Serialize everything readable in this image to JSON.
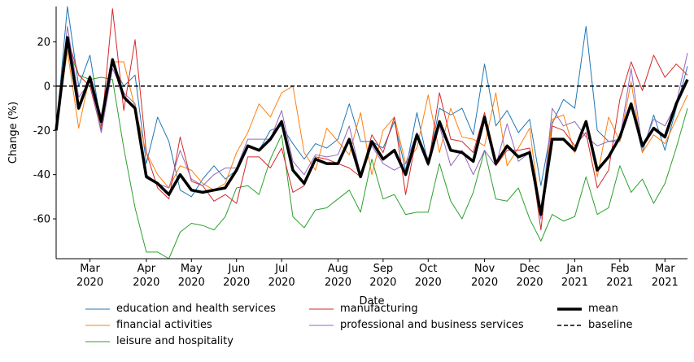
{
  "chart_data": {
    "type": "line",
    "xlabel": "Date",
    "ylabel": "Change (%)",
    "categories": [
      null,
      null,
      null,
      "Mar\n2020",
      null,
      null,
      null,
      null,
      "Apr\n2020",
      null,
      null,
      null,
      "May\n2020",
      null,
      null,
      null,
      "Jun\n2020",
      null,
      null,
      null,
      "Jul\n2020",
      null,
      null,
      null,
      null,
      "Aug\n2020",
      null,
      null,
      null,
      "Sep\n2020",
      null,
      null,
      null,
      "Oct\n2020",
      null,
      null,
      null,
      null,
      "Nov\n2020",
      null,
      null,
      null,
      "Dec\n2020",
      null,
      null,
      null,
      "Jan\n2021",
      null,
      null,
      null,
      "Feb\n2021",
      null,
      null,
      null,
      "Mar\n2021",
      null,
      null
    ],
    "ylim": [
      -78,
      36
    ],
    "yticks": [
      -60,
      -40,
      -20,
      0,
      20
    ],
    "series": [
      {
        "name": "education and health services",
        "color": "#1f77b4",
        "width": 1,
        "values": [
          -20,
          36,
          0,
          14,
          -18,
          10,
          0,
          5,
          -35,
          -14,
          -25,
          -47,
          -50,
          -42,
          -36,
          -42,
          -38,
          -27,
          -29,
          -20,
          -18,
          -26,
          -33,
          -26,
          -28,
          -24,
          -8,
          -25,
          -25,
          -28,
          -16,
          -38,
          -12,
          -35,
          -10,
          -13,
          -10,
          -22,
          10,
          -18,
          -11,
          -21,
          -15,
          -45,
          -17,
          -6,
          -10,
          27,
          -20,
          -25,
          -25,
          -8,
          -30,
          -13,
          -29,
          -10,
          9
        ]
      },
      {
        "name": "financial activities",
        "color": "#ff7f0e",
        "width": 1,
        "values": [
          -20,
          16,
          -19,
          5,
          -20,
          11,
          11,
          -10,
          -30,
          -40,
          -46,
          -36,
          -38,
          -44,
          -47,
          -44,
          -30,
          -21,
          -8,
          -14,
          -3,
          0,
          -30,
          -38,
          -19,
          -25,
          -31,
          -12,
          -40,
          -20,
          -14,
          -35,
          -28,
          -4,
          -30,
          -10,
          -23,
          -24,
          -27,
          -3,
          -36,
          -28,
          -19,
          -59,
          -15,
          -13,
          -30,
          -17,
          -41,
          -14,
          -25,
          2,
          -30,
          -22,
          -26,
          -15,
          -4
        ]
      },
      {
        "name": "leisure and hospitality",
        "color": "#2ca02c",
        "width": 1,
        "values": [
          -20,
          18,
          5,
          3,
          4,
          3,
          -28,
          -55,
          -75,
          -75,
          -78,
          -66,
          -62,
          -63,
          -65,
          -59,
          -46,
          -45,
          -49,
          -33,
          -22,
          -59,
          -64,
          -56,
          -55,
          -51,
          -47,
          -57,
          -33,
          -51,
          -49,
          -58,
          -57,
          -57,
          -35,
          -52,
          -60,
          -48,
          -29,
          -51,
          -52,
          -46,
          -60,
          -70,
          -58,
          -61,
          -59,
          -41,
          -58,
          -55,
          -36,
          -48,
          -42,
          -53,
          -44,
          -28,
          -10
        ]
      },
      {
        "name": "manufacturing",
        "color": "#d62728",
        "width": 1,
        "values": [
          -20,
          22,
          5,
          0,
          -20,
          35,
          -11,
          21,
          -30,
          -46,
          -51,
          -23,
          -43,
          -45,
          -52,
          -49,
          -53,
          -32,
          -32,
          -37,
          -28,
          -48,
          -45,
          -32,
          -33,
          -35,
          -37,
          -41,
          -22,
          -30,
          -14,
          -49,
          -22,
          -36,
          -3,
          -24,
          -25,
          -30,
          -12,
          -36,
          -29,
          -29,
          -28,
          -65,
          -18,
          -20,
          -27,
          -21,
          -46,
          -38,
          -6,
          11,
          -2,
          14,
          4,
          10,
          5
        ]
      },
      {
        "name": "professional and business services",
        "color": "#9467bd",
        "width": 1,
        "values": [
          -20,
          27,
          -5,
          2,
          -21,
          8,
          -3,
          -8,
          -40,
          -44,
          -46,
          -29,
          -42,
          -45,
          -40,
          -37,
          -37,
          -24,
          -24,
          -24,
          -11,
          -34,
          -40,
          -31,
          -32,
          -31,
          -18,
          -40,
          -27,
          -35,
          -38,
          -35,
          -21,
          -33,
          -18,
          -36,
          -29,
          -40,
          -29,
          -36,
          -17,
          -34,
          -30,
          -60,
          -10,
          -18,
          -16,
          -23,
          -27,
          -25,
          -24,
          8,
          -28,
          -15,
          -18,
          -8,
          15
        ]
      },
      {
        "name": "mean",
        "color": "#000000",
        "width": 3.5,
        "values": [
          -20,
          22,
          -10,
          4,
          -16,
          12,
          -5,
          -10,
          -41,
          -44,
          -49,
          -40,
          -47,
          -48,
          -47,
          -46,
          -38,
          -27,
          -29,
          -24,
          -16,
          -38,
          -44,
          -33,
          -35,
          -35,
          -24,
          -41,
          -25,
          -33,
          -29,
          -40,
          -22,
          -35,
          -16,
          -29,
          -30,
          -34,
          -14,
          -35,
          -27,
          -32,
          -30,
          -58,
          -24,
          -24,
          -29,
          -16,
          -38,
          -32,
          -23,
          -8,
          -27,
          -19,
          -23,
          -8,
          3
        ]
      }
    ],
    "baseline": {
      "name": "baseline",
      "value": 0,
      "color": "#000000"
    }
  }
}
